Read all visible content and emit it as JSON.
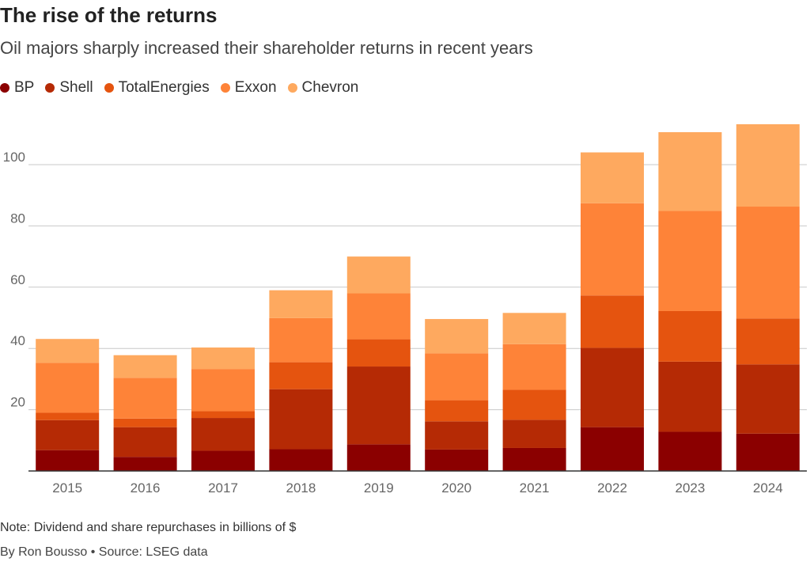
{
  "header": {
    "title": "The rise of the returns",
    "subtitle": "Oil majors sharply increased their shareholder returns in recent years"
  },
  "legend": [
    {
      "label": "BP",
      "color": "#8b0000"
    },
    {
      "label": "Shell",
      "color": "#b52a05"
    },
    {
      "label": "TotalEnergies",
      "color": "#e5540f"
    },
    {
      "label": "Exxon",
      "color": "#fe8338"
    },
    {
      "label": "Chevron",
      "color": "#fea95f"
    }
  ],
  "footer": {
    "note": "Note: Dividend and share repurchases in billions of $",
    "source": "By Ron Bousso • Source: LSEG data"
  },
  "chart_data": {
    "type": "bar",
    "stacked": true,
    "categories": [
      "2015",
      "2016",
      "2017",
      "2018",
      "2019",
      "2020",
      "2021",
      "2022",
      "2023",
      "2024"
    ],
    "series": [
      {
        "name": "BP",
        "color": "#8b0000",
        "values": [
          6.8,
          4.6,
          6.6,
          7.1,
          8.7,
          7.0,
          7.5,
          14.3,
          12.8,
          12.2
        ]
      },
      {
        "name": "Shell",
        "color": "#b52a05",
        "values": [
          9.8,
          9.7,
          10.7,
          19.6,
          25.4,
          9.2,
          9.2,
          25.9,
          22.9,
          22.6
        ]
      },
      {
        "name": "TotalEnergies",
        "color": "#e5540f",
        "values": [
          2.4,
          2.8,
          2.2,
          8.8,
          8.9,
          6.9,
          9.8,
          17.1,
          16.5,
          15.0
        ]
      },
      {
        "name": "Exxon",
        "color": "#fe8338",
        "values": [
          16.3,
          13.3,
          13.8,
          14.4,
          15.0,
          15.3,
          14.9,
          30.1,
          32.7,
          36.5
        ]
      },
      {
        "name": "Chevron",
        "color": "#fea95f",
        "values": [
          7.8,
          7.4,
          7.0,
          9.1,
          12.0,
          11.2,
          10.2,
          16.6,
          25.7,
          26.9
        ]
      }
    ],
    "yticks": [
      20,
      40,
      60,
      80,
      100
    ],
    "ylim": [
      0,
      116
    ],
    "grid": true,
    "legend_position": "top-left"
  }
}
